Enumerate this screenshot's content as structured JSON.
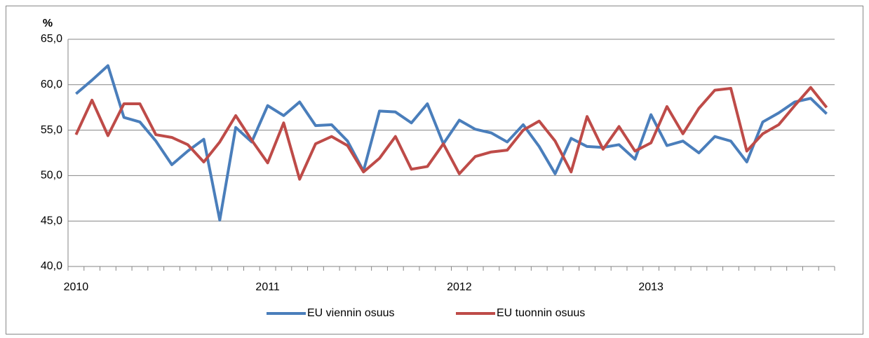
{
  "chart_data": {
    "type": "line",
    "y_label": "%",
    "categories": [
      "2010",
      null,
      null,
      null,
      null,
      null,
      null,
      null,
      null,
      null,
      null,
      null,
      "2011",
      null,
      null,
      null,
      null,
      null,
      null,
      null,
      null,
      null,
      null,
      null,
      "2012",
      null,
      null,
      null,
      null,
      null,
      null,
      null,
      null,
      null,
      null,
      null,
      "2013",
      null,
      null,
      null,
      null,
      null,
      null,
      null,
      null,
      null,
      null,
      null
    ],
    "series": [
      {
        "name": "EU viennin osuus",
        "color": "#4a7ebb",
        "values": [
          59.0,
          60.5,
          62.1,
          56.4,
          55.9,
          53.8,
          51.2,
          52.7,
          54.0,
          45.1,
          55.3,
          53.7,
          57.7,
          56.6,
          58.1,
          55.5,
          55.6,
          53.8,
          50.5,
          57.1,
          57.0,
          55.8,
          57.9,
          53.5,
          56.1,
          55.1,
          54.7,
          53.7,
          55.6,
          53.2,
          50.2,
          54.1,
          53.2,
          53.1,
          53.4,
          51.8,
          56.7,
          53.3,
          53.8,
          52.5,
          54.3,
          53.8,
          51.5,
          55.9,
          56.9,
          58.1,
          58.5,
          56.8
        ]
      },
      {
        "name": "EU tuonnin osuus",
        "color": "#be4b48",
        "values": [
          54.5,
          58.3,
          54.4,
          57.9,
          57.9,
          54.5,
          54.2,
          53.4,
          51.5,
          53.7,
          56.6,
          53.9,
          51.4,
          55.8,
          49.6,
          53.5,
          54.3,
          53.3,
          50.4,
          51.9,
          54.3,
          50.7,
          51.0,
          53.5,
          50.2,
          52.1,
          52.6,
          52.8,
          55.0,
          56.0,
          53.8,
          50.4,
          56.5,
          52.9,
          55.4,
          52.7,
          53.6,
          57.6,
          54.6,
          57.4,
          59.4,
          59.6,
          52.7,
          54.6,
          55.6,
          57.7,
          59.7,
          57.5
        ]
      }
    ],
    "ylim": [
      40,
      65
    ],
    "yticks": [
      {
        "value": 40,
        "label": "40,0"
      },
      {
        "value": 45,
        "label": "45,0"
      },
      {
        "value": 50,
        "label": "50,0"
      },
      {
        "value": 55,
        "label": "55,0"
      },
      {
        "value": 60,
        "label": "60,0"
      },
      {
        "value": 65,
        "label": "65,0"
      }
    ],
    "grid": true,
    "legend": "bottom"
  }
}
